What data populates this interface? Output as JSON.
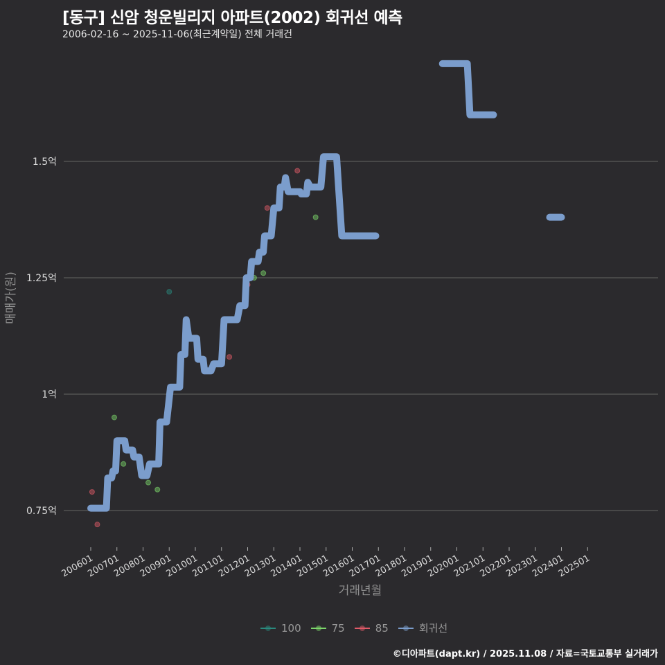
{
  "header": {
    "title": "[동구] 신암 청운빌리지 아파트(2002) 회귀선 예측",
    "subtitle": "2006-02-16 ~ 2025-11-06(최근계약일) 전체 거래건"
  },
  "caption": "©디아파트(dapt.kr) / 2025.11.08 / 자료=국토교통부 실거래가",
  "colors": {
    "background": "#2b2a2d",
    "grid": "#5a5a5a",
    "s100": "#2a8a7e",
    "s75": "#7cd66a",
    "s85": "#e05a68",
    "regression": "#7b9dcc"
  },
  "legend": [
    {
      "label": "100",
      "color": "#2a8a7e"
    },
    {
      "label": "75",
      "color": "#7cd66a"
    },
    {
      "label": "85",
      "color": "#e05a68"
    },
    {
      "label": "회귀선",
      "color": "#7b9dcc"
    }
  ],
  "chart_data": {
    "type": "line",
    "title": "[동구] 신암 청운빌리지 아파트(2002) 회귀선 예측",
    "subtitle": "2006-02-16 ~ 2025-11-06(최근계약일) 전체 거래건",
    "xlabel": "거래년월",
    "ylabel": "매매가(원)",
    "ylim": [
      0.69,
      1.74
    ],
    "y_unit": "억",
    "yticks": [
      {
        "value": 0.75,
        "label": "0.75억"
      },
      {
        "value": 1.0,
        "label": "1억"
      },
      {
        "value": 1.25,
        "label": "1.25억"
      },
      {
        "value": 1.5,
        "label": "1.5억"
      }
    ],
    "xticks": [
      "200601",
      "200701",
      "200801",
      "200901",
      "201001",
      "201101",
      "201201",
      "201301",
      "201401",
      "201501",
      "201601",
      "201701",
      "201801",
      "201901",
      "202001",
      "202101",
      "202201",
      "202301",
      "202401",
      "202501"
    ],
    "grid": "horizontal",
    "legend_position": "bottom",
    "series": [
      {
        "name": "회귀선",
        "type": "step-line",
        "segments": [
          [
            [
              2006.0,
              0.755
            ],
            [
              2006.6,
              0.755
            ],
            [
              2006.65,
              0.82
            ],
            [
              2006.8,
              0.82
            ],
            [
              2006.85,
              0.835
            ],
            [
              2006.95,
              0.835
            ],
            [
              2007.0,
              0.9
            ],
            [
              2007.3,
              0.9
            ],
            [
              2007.35,
              0.88
            ],
            [
              2007.6,
              0.88
            ],
            [
              2007.65,
              0.865
            ],
            [
              2007.85,
              0.865
            ],
            [
              2007.95,
              0.825
            ],
            [
              2008.15,
              0.825
            ],
            [
              2008.25,
              0.85
            ],
            [
              2008.6,
              0.85
            ],
            [
              2008.65,
              0.94
            ],
            [
              2008.9,
              0.94
            ],
            [
              2009.05,
              1.015
            ],
            [
              2009.4,
              1.015
            ],
            [
              2009.45,
              1.085
            ],
            [
              2009.6,
              1.085
            ],
            [
              2009.65,
              1.16
            ],
            [
              2009.75,
              1.12
            ],
            [
              2010.05,
              1.12
            ],
            [
              2010.1,
              1.075
            ],
            [
              2010.3,
              1.075
            ],
            [
              2010.35,
              1.05
            ],
            [
              2010.6,
              1.05
            ],
            [
              2010.7,
              1.065
            ],
            [
              2011.0,
              1.065
            ],
            [
              2011.1,
              1.16
            ],
            [
              2011.6,
              1.16
            ],
            [
              2011.7,
              1.19
            ],
            [
              2011.9,
              1.19
            ],
            [
              2011.95,
              1.25
            ],
            [
              2012.1,
              1.25
            ],
            [
              2012.15,
              1.285
            ],
            [
              2012.4,
              1.285
            ],
            [
              2012.45,
              1.305
            ],
            [
              2012.6,
              1.305
            ],
            [
              2012.65,
              1.34
            ],
            [
              2012.9,
              1.34
            ],
            [
              2013.0,
              1.4
            ],
            [
              2013.2,
              1.4
            ],
            [
              2013.25,
              1.445
            ],
            [
              2013.4,
              1.445
            ],
            [
              2013.45,
              1.465
            ],
            [
              2013.55,
              1.435
            ],
            [
              2014.0,
              1.435
            ],
            [
              2014.05,
              1.43
            ],
            [
              2014.25,
              1.43
            ],
            [
              2014.3,
              1.455
            ],
            [
              2014.4,
              1.445
            ],
            [
              2014.8,
              1.445
            ],
            [
              2014.9,
              1.51
            ],
            [
              2015.4,
              1.51
            ],
            [
              2015.6,
              1.34
            ],
            [
              2016.9,
              1.34
            ]
          ],
          [
            [
              2019.45,
              1.71
            ],
            [
              2020.4,
              1.71
            ],
            [
              2020.5,
              1.6
            ],
            [
              2021.4,
              1.6
            ]
          ],
          [
            [
              2023.55,
              1.38
            ],
            [
              2024.0,
              1.38
            ]
          ]
        ]
      },
      {
        "name": "100",
        "type": "scatter",
        "points": [
          [
            2009.0,
            1.22
          ]
        ]
      },
      {
        "name": "75",
        "type": "scatter",
        "points": [
          [
            2006.9,
            0.95
          ],
          [
            2007.25,
            0.85
          ],
          [
            2008.2,
            0.81
          ],
          [
            2008.55,
            0.795
          ],
          [
            2012.25,
            1.25
          ],
          [
            2012.6,
            1.26
          ],
          [
            2014.6,
            1.38
          ]
        ]
      },
      {
        "name": "85",
        "type": "scatter",
        "points": [
          [
            2006.05,
            0.79
          ],
          [
            2006.25,
            0.72
          ],
          [
            2011.3,
            1.08
          ],
          [
            2012.0,
            1.235
          ],
          [
            2012.75,
            1.4
          ],
          [
            2013.9,
            1.48
          ]
        ]
      }
    ]
  }
}
